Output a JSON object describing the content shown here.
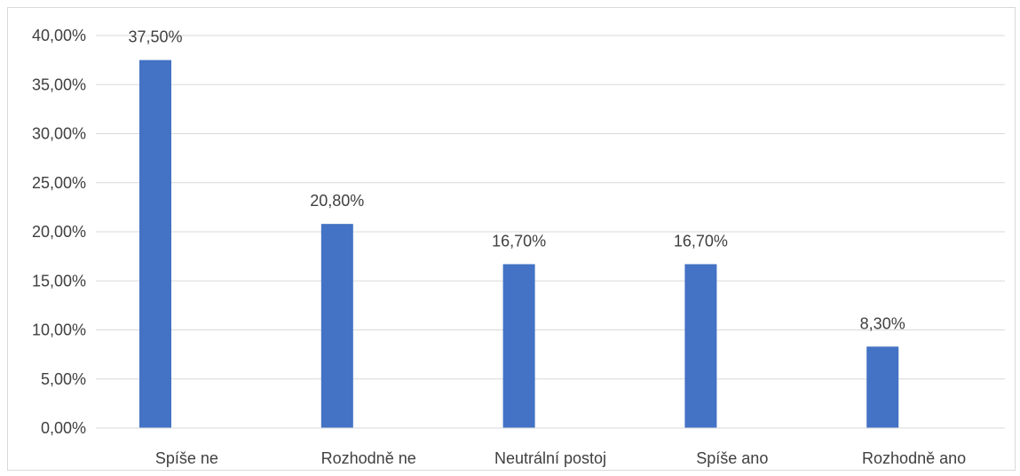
{
  "chart_data": {
    "type": "bar",
    "title": "",
    "xlabel": "",
    "ylabel": "",
    "categories": [
      "Spíše ne",
      "Rozhodně ne",
      "Neutrální postoj",
      "Spíše ano",
      "Rozhodně ano"
    ],
    "values": [
      37.5,
      20.8,
      16.7,
      16.7,
      8.3
    ],
    "data_labels": [
      "37,50%",
      "20,80%",
      "16,70%",
      "16,70%",
      "8,30%"
    ],
    "ylim": [
      0,
      40
    ],
    "y_ticks": [
      0,
      5,
      10,
      15,
      20,
      25,
      30,
      35,
      40
    ],
    "y_tick_labels": [
      "0,00%",
      "5,00%",
      "10,00%",
      "15,00%",
      "20,00%",
      "25,00%",
      "30,00%",
      "35,00%",
      "40,00%"
    ],
    "grid": true,
    "legend": "none",
    "bar_color": "#4472C4",
    "grid_color": "#d9d9d9"
  }
}
